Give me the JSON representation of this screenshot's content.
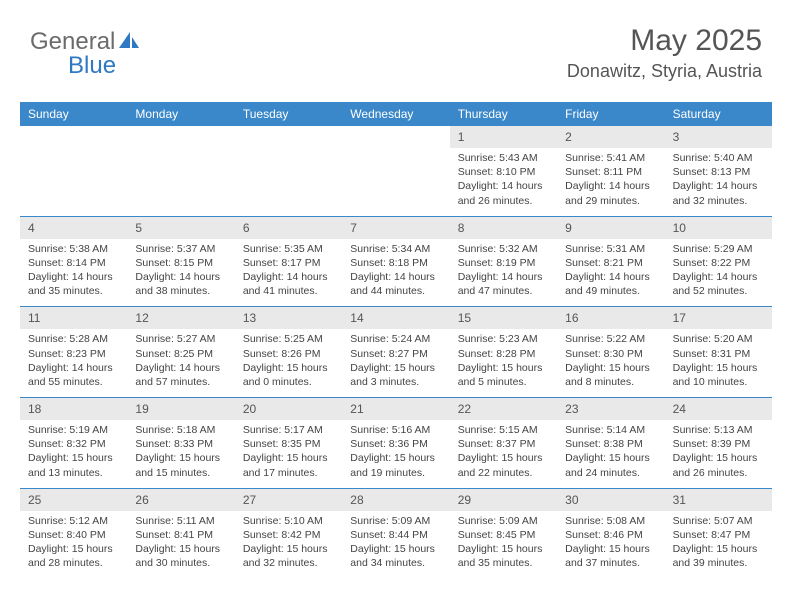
{
  "brand": {
    "part1": "General",
    "part2": "Blue"
  },
  "title": {
    "month_year": "May 2025",
    "location": "Donawitz, Styria, Austria"
  },
  "colors": {
    "header_bg": "#3a87c9",
    "daynum_bg": "#e9e9e9",
    "rule": "#3a87c9"
  },
  "day_names": [
    "Sunday",
    "Monday",
    "Tuesday",
    "Wednesday",
    "Thursday",
    "Friday",
    "Saturday"
  ],
  "weeks": [
    {
      "days": [
        null,
        null,
        null,
        null,
        {
          "n": "1",
          "sunrise": "Sunrise: 5:43 AM",
          "sunset": "Sunset: 8:10 PM",
          "daylight1": "Daylight: 14 hours",
          "daylight2": "and 26 minutes."
        },
        {
          "n": "2",
          "sunrise": "Sunrise: 5:41 AM",
          "sunset": "Sunset: 8:11 PM",
          "daylight1": "Daylight: 14 hours",
          "daylight2": "and 29 minutes."
        },
        {
          "n": "3",
          "sunrise": "Sunrise: 5:40 AM",
          "sunset": "Sunset: 8:13 PM",
          "daylight1": "Daylight: 14 hours",
          "daylight2": "and 32 minutes."
        }
      ]
    },
    {
      "days": [
        {
          "n": "4",
          "sunrise": "Sunrise: 5:38 AM",
          "sunset": "Sunset: 8:14 PM",
          "daylight1": "Daylight: 14 hours",
          "daylight2": "and 35 minutes."
        },
        {
          "n": "5",
          "sunrise": "Sunrise: 5:37 AM",
          "sunset": "Sunset: 8:15 PM",
          "daylight1": "Daylight: 14 hours",
          "daylight2": "and 38 minutes."
        },
        {
          "n": "6",
          "sunrise": "Sunrise: 5:35 AM",
          "sunset": "Sunset: 8:17 PM",
          "daylight1": "Daylight: 14 hours",
          "daylight2": "and 41 minutes."
        },
        {
          "n": "7",
          "sunrise": "Sunrise: 5:34 AM",
          "sunset": "Sunset: 8:18 PM",
          "daylight1": "Daylight: 14 hours",
          "daylight2": "and 44 minutes."
        },
        {
          "n": "8",
          "sunrise": "Sunrise: 5:32 AM",
          "sunset": "Sunset: 8:19 PM",
          "daylight1": "Daylight: 14 hours",
          "daylight2": "and 47 minutes."
        },
        {
          "n": "9",
          "sunrise": "Sunrise: 5:31 AM",
          "sunset": "Sunset: 8:21 PM",
          "daylight1": "Daylight: 14 hours",
          "daylight2": "and 49 minutes."
        },
        {
          "n": "10",
          "sunrise": "Sunrise: 5:29 AM",
          "sunset": "Sunset: 8:22 PM",
          "daylight1": "Daylight: 14 hours",
          "daylight2": "and 52 minutes."
        }
      ]
    },
    {
      "days": [
        {
          "n": "11",
          "sunrise": "Sunrise: 5:28 AM",
          "sunset": "Sunset: 8:23 PM",
          "daylight1": "Daylight: 14 hours",
          "daylight2": "and 55 minutes."
        },
        {
          "n": "12",
          "sunrise": "Sunrise: 5:27 AM",
          "sunset": "Sunset: 8:25 PM",
          "daylight1": "Daylight: 14 hours",
          "daylight2": "and 57 minutes."
        },
        {
          "n": "13",
          "sunrise": "Sunrise: 5:25 AM",
          "sunset": "Sunset: 8:26 PM",
          "daylight1": "Daylight: 15 hours",
          "daylight2": "and 0 minutes."
        },
        {
          "n": "14",
          "sunrise": "Sunrise: 5:24 AM",
          "sunset": "Sunset: 8:27 PM",
          "daylight1": "Daylight: 15 hours",
          "daylight2": "and 3 minutes."
        },
        {
          "n": "15",
          "sunrise": "Sunrise: 5:23 AM",
          "sunset": "Sunset: 8:28 PM",
          "daylight1": "Daylight: 15 hours",
          "daylight2": "and 5 minutes."
        },
        {
          "n": "16",
          "sunrise": "Sunrise: 5:22 AM",
          "sunset": "Sunset: 8:30 PM",
          "daylight1": "Daylight: 15 hours",
          "daylight2": "and 8 minutes."
        },
        {
          "n": "17",
          "sunrise": "Sunrise: 5:20 AM",
          "sunset": "Sunset: 8:31 PM",
          "daylight1": "Daylight: 15 hours",
          "daylight2": "and 10 minutes."
        }
      ]
    },
    {
      "days": [
        {
          "n": "18",
          "sunrise": "Sunrise: 5:19 AM",
          "sunset": "Sunset: 8:32 PM",
          "daylight1": "Daylight: 15 hours",
          "daylight2": "and 13 minutes."
        },
        {
          "n": "19",
          "sunrise": "Sunrise: 5:18 AM",
          "sunset": "Sunset: 8:33 PM",
          "daylight1": "Daylight: 15 hours",
          "daylight2": "and 15 minutes."
        },
        {
          "n": "20",
          "sunrise": "Sunrise: 5:17 AM",
          "sunset": "Sunset: 8:35 PM",
          "daylight1": "Daylight: 15 hours",
          "daylight2": "and 17 minutes."
        },
        {
          "n": "21",
          "sunrise": "Sunrise: 5:16 AM",
          "sunset": "Sunset: 8:36 PM",
          "daylight1": "Daylight: 15 hours",
          "daylight2": "and 19 minutes."
        },
        {
          "n": "22",
          "sunrise": "Sunrise: 5:15 AM",
          "sunset": "Sunset: 8:37 PM",
          "daylight1": "Daylight: 15 hours",
          "daylight2": "and 22 minutes."
        },
        {
          "n": "23",
          "sunrise": "Sunrise: 5:14 AM",
          "sunset": "Sunset: 8:38 PM",
          "daylight1": "Daylight: 15 hours",
          "daylight2": "and 24 minutes."
        },
        {
          "n": "24",
          "sunrise": "Sunrise: 5:13 AM",
          "sunset": "Sunset: 8:39 PM",
          "daylight1": "Daylight: 15 hours",
          "daylight2": "and 26 minutes."
        }
      ]
    },
    {
      "days": [
        {
          "n": "25",
          "sunrise": "Sunrise: 5:12 AM",
          "sunset": "Sunset: 8:40 PM",
          "daylight1": "Daylight: 15 hours",
          "daylight2": "and 28 minutes."
        },
        {
          "n": "26",
          "sunrise": "Sunrise: 5:11 AM",
          "sunset": "Sunset: 8:41 PM",
          "daylight1": "Daylight: 15 hours",
          "daylight2": "and 30 minutes."
        },
        {
          "n": "27",
          "sunrise": "Sunrise: 5:10 AM",
          "sunset": "Sunset: 8:42 PM",
          "daylight1": "Daylight: 15 hours",
          "daylight2": "and 32 minutes."
        },
        {
          "n": "28",
          "sunrise": "Sunrise: 5:09 AM",
          "sunset": "Sunset: 8:44 PM",
          "daylight1": "Daylight: 15 hours",
          "daylight2": "and 34 minutes."
        },
        {
          "n": "29",
          "sunrise": "Sunrise: 5:09 AM",
          "sunset": "Sunset: 8:45 PM",
          "daylight1": "Daylight: 15 hours",
          "daylight2": "and 35 minutes."
        },
        {
          "n": "30",
          "sunrise": "Sunrise: 5:08 AM",
          "sunset": "Sunset: 8:46 PM",
          "daylight1": "Daylight: 15 hours",
          "daylight2": "and 37 minutes."
        },
        {
          "n": "31",
          "sunrise": "Sunrise: 5:07 AM",
          "sunset": "Sunset: 8:47 PM",
          "daylight1": "Daylight: 15 hours",
          "daylight2": "and 39 minutes."
        }
      ]
    }
  ]
}
